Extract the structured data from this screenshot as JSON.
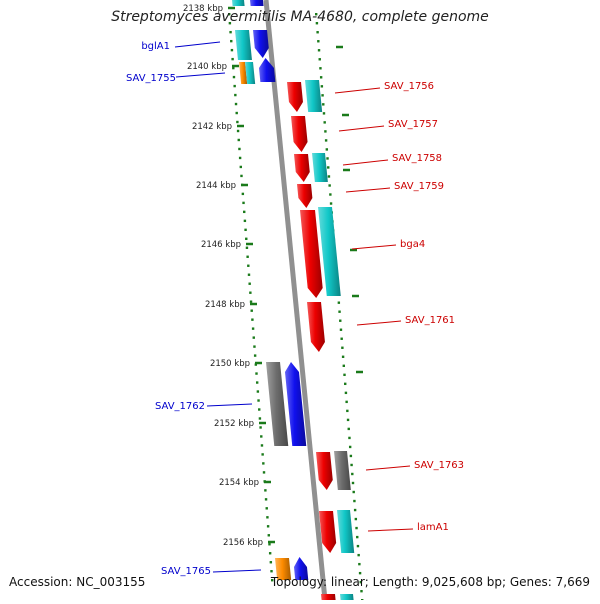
{
  "title": "Streptomyces avermitilis MA-4680, complete genome",
  "footer": {
    "accession": "Accession: NC_003155",
    "summary": "Topology: linear; Length: 9,025,608 bp; Genes: 7,669"
  },
  "colors": {
    "red": "#ee0000",
    "cyan": "#11c8c8",
    "blue": "#1010ee",
    "gray": "#6e6e6e",
    "orange": "#ff8c00",
    "tick": "#1a7a1a",
    "label_left": "#0000cc",
    "label_right": "#cc0000"
  },
  "ticks": [
    "2138 kbp",
    "2140 kbp",
    "2142 kbp",
    "2144 kbp",
    "2146 kbp",
    "2148 kbp",
    "2150 kbp",
    "2152 kbp",
    "2154 kbp",
    "2156 kbp"
  ],
  "genes_left": [
    {
      "name": "bglA1"
    },
    {
      "name": "SAV_1755"
    },
    {
      "name": "SAV_1762"
    },
    {
      "name": "SAV_1765"
    }
  ],
  "genes_right": [
    {
      "name": "SAV_1756"
    },
    {
      "name": "SAV_1757"
    },
    {
      "name": "SAV_1758"
    },
    {
      "name": "SAV_1759"
    },
    {
      "name": "bga4"
    },
    {
      "name": "SAV_1761"
    },
    {
      "name": "SAV_1763"
    },
    {
      "name": "lamA1"
    }
  ]
}
